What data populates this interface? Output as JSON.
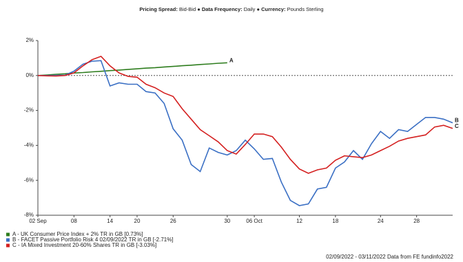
{
  "chart_data": {
    "type": "line",
    "header": {
      "k1": "Pricing Spread:",
      "v1": "Bid-Bid",
      "sep": "●",
      "k2": "Data Frequency:",
      "v2": "Daily",
      "k3": "Currency:",
      "v3": "Pounds Sterling"
    },
    "categories": [
      "02 Sep",
      null,
      null,
      null,
      "08",
      null,
      null,
      null,
      "14",
      null,
      null,
      "20",
      null,
      null,
      null,
      "26",
      null,
      null,
      null,
      null,
      null,
      "30",
      null,
      null,
      "06 Oct",
      null,
      null,
      null,
      null,
      "12",
      null,
      null,
      null,
      "18",
      null,
      null,
      null,
      null,
      "24",
      null,
      null,
      null,
      "28",
      null,
      null,
      null,
      null
    ],
    "series": [
      {
        "name": "A - UK Consumer Price Index + 2% TR in GB [0.73%]",
        "end_label": "A",
        "color": "#2e7d1e",
        "values": [
          0,
          0.03,
          0.07,
          0.1,
          0.14,
          0.17,
          0.21,
          0.24,
          0.28,
          0.31,
          0.35,
          0.38,
          0.42,
          0.45,
          0.49,
          0.52,
          0.56,
          0.59,
          0.63,
          0.66,
          0.7,
          0.73,
          null,
          null,
          null,
          null,
          null,
          null,
          null,
          null,
          null,
          null,
          null,
          null,
          null,
          null,
          null,
          null,
          null,
          null,
          null,
          null,
          null,
          null,
          null,
          null,
          null
        ]
      },
      {
        "name": "B - FACET Passive Portfolio Risk 4 02/09/2022 TR in GB [-2.71%]",
        "end_label": "B",
        "color": "#3a6fc4",
        "values": [
          0,
          0,
          0.01,
          0.02,
          0.25,
          0.65,
          0.82,
          0.85,
          -0.6,
          -0.42,
          -0.5,
          -0.5,
          -0.92,
          -1.0,
          -1.6,
          -3.05,
          -3.7,
          -5.1,
          -5.5,
          -4.15,
          -4.4,
          -4.55,
          -4.3,
          -3.7,
          -4.2,
          -4.8,
          -4.75,
          -6.1,
          -7.15,
          -7.45,
          -7.35,
          -6.5,
          -6.4,
          -5.3,
          -4.95,
          -4.3,
          -4.8,
          -3.9,
          -3.2,
          -3.6,
          -3.1,
          -3.2,
          -2.8,
          -2.4,
          -2.4,
          -2.5,
          -2.71
        ]
      },
      {
        "name": "C - IA Mixed Investment 20-60% Shares TR in GB [-3.03%]",
        "end_label": "C",
        "color": "#d42020",
        "values": [
          0,
          -0.02,
          -0.03,
          0,
          0.15,
          0.55,
          0.9,
          1.1,
          0.55,
          0.15,
          -0.05,
          -0.1,
          -0.5,
          -0.7,
          -1.0,
          -1.2,
          -1.9,
          -2.5,
          -3.1,
          -3.45,
          -3.8,
          -4.3,
          -4.5,
          -3.95,
          -3.35,
          -3.35,
          -3.5,
          -4.1,
          -4.8,
          -5.35,
          -5.6,
          -5.4,
          -5.3,
          -4.85,
          -4.6,
          -4.65,
          -4.7,
          -4.55,
          -4.3,
          -4.05,
          -3.75,
          -3.6,
          -3.5,
          -3.4,
          -2.95,
          -2.85,
          -3.03
        ]
      }
    ],
    "ylim": [
      -8,
      2
    ],
    "yticks": [
      {
        "value": -8,
        "label": "-8%"
      },
      {
        "value": -6,
        "label": "-6%"
      },
      {
        "value": -4,
        "label": "-4%"
      },
      {
        "value": -2,
        "label": "-2%"
      },
      {
        "value": 0,
        "label": "0%"
      },
      {
        "value": 2,
        "label": "2%"
      }
    ],
    "zero_line": true,
    "legend": "bottom-left",
    "footer": "02/09/2022 - 03/11/2022 Data from FE fundinfo2022"
  }
}
